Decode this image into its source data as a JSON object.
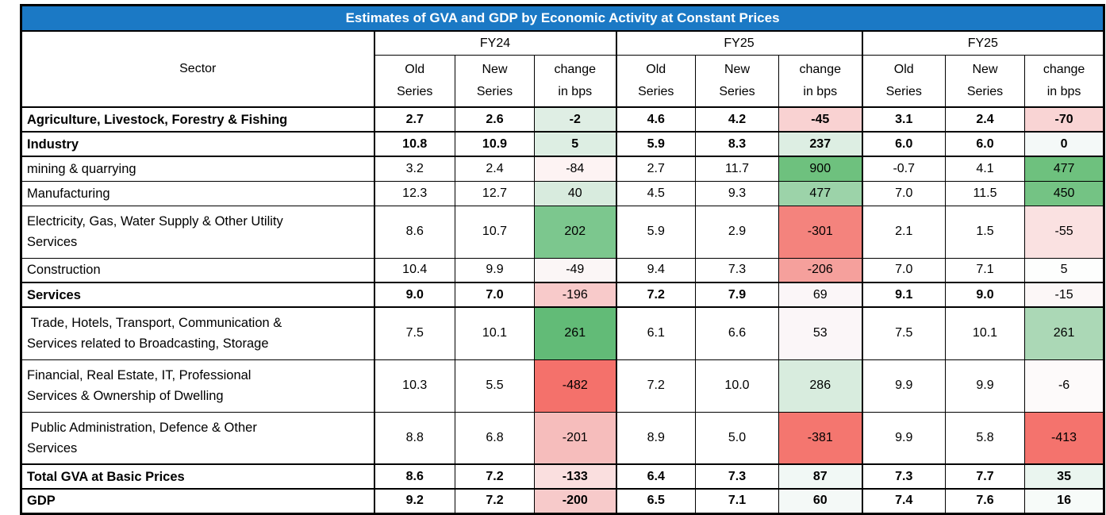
{
  "title_bar": {
    "text": "Estimates of GVA and GDP by Economic Activity at Constant Prices",
    "bg": "#1b79c5",
    "fg": "#ffffff"
  },
  "chart_data": {
    "type": "table",
    "title": "Estimates of GVA and GDP by Economic Activity at Constant Prices",
    "sector_header": "Sector",
    "groups": [
      "FY24",
      "FY25",
      "FY25"
    ],
    "sub_columns": [
      {
        "l1": "Old",
        "l2": "Series"
      },
      {
        "l1": "New",
        "l2": "Series"
      },
      {
        "l1": "change",
        "l2": "in bps"
      }
    ],
    "legend_note_colors": {
      "positive_change": "#6ec17e",
      "negative_change": "#f4716b",
      "neutral": "#ffffff",
      "border": "#000000"
    },
    "rows": [
      {
        "sector": "Agriculture, Livestock, Forestry & Fishing",
        "bold": true,
        "change_bold": true,
        "cells": [
          {
            "v": "2.7"
          },
          {
            "v": "2.6"
          },
          {
            "v": "-2",
            "bg": "#dfeee4"
          },
          {
            "v": "4.6"
          },
          {
            "v": "4.2"
          },
          {
            "v": "-45",
            "bg": "#f9d2d2"
          },
          {
            "v": "3.1"
          },
          {
            "v": "2.4"
          },
          {
            "v": "-70",
            "bg": "#f9d4d4"
          }
        ]
      },
      {
        "sector": "Industry",
        "bold": true,
        "change_bold": true,
        "cells": [
          {
            "v": "10.8"
          },
          {
            "v": "10.9"
          },
          {
            "v": "5",
            "bg": "#ddeee3"
          },
          {
            "v": "5.9"
          },
          {
            "v": "8.3"
          },
          {
            "v": "237",
            "bg": "#ddeee3"
          },
          {
            "v": "6.0"
          },
          {
            "v": "6.0"
          },
          {
            "v": "0",
            "bg": "#f4f9f8"
          }
        ]
      },
      {
        "sector": "mining & quarrying",
        "bold": false,
        "change_bold": false,
        "cells": [
          {
            "v": "3.2"
          },
          {
            "v": "2.4"
          },
          {
            "v": "-84",
            "bg": "#fdf3f3"
          },
          {
            "v": "2.7"
          },
          {
            "v": "11.7"
          },
          {
            "v": "900",
            "bg": "#6ec17e"
          },
          {
            "v": "-0.7"
          },
          {
            "v": "4.1"
          },
          {
            "v": "477",
            "bg": "#6ec17e"
          }
        ]
      },
      {
        "sector": "Manufacturing",
        "bold": false,
        "change_bold": false,
        "cells": [
          {
            "v": "12.3"
          },
          {
            "v": "12.7"
          },
          {
            "v": "40",
            "bg": "#d8ebde"
          },
          {
            "v": "4.5"
          },
          {
            "v": "9.3"
          },
          {
            "v": "477",
            "bg": "#9cd3a9"
          },
          {
            "v": "7.0"
          },
          {
            "v": "11.5"
          },
          {
            "v": "450",
            "bg": "#74c384"
          }
        ]
      },
      {
        "sector": "Electricity, Gas, Water Supply & Other Utility\nServices",
        "bold": false,
        "change_bold": false,
        "cells": [
          {
            "v": "8.6"
          },
          {
            "v": "10.7"
          },
          {
            "v": "202",
            "bg": "#7cc78e"
          },
          {
            "v": "5.9"
          },
          {
            "v": "2.9"
          },
          {
            "v": "-301",
            "bg": "#f4837d"
          },
          {
            "v": "2.1"
          },
          {
            "v": "1.5"
          },
          {
            "v": "-55",
            "bg": "#fae1e1"
          }
        ]
      },
      {
        "sector": "Construction",
        "bold": false,
        "change_bold": false,
        "cells": [
          {
            "v": "10.4"
          },
          {
            "v": "9.9"
          },
          {
            "v": "-49",
            "bg": "#fbf6f6"
          },
          {
            "v": "9.4"
          },
          {
            "v": "7.3"
          },
          {
            "v": "-206",
            "bg": "#f5a09c"
          },
          {
            "v": "7.0"
          },
          {
            "v": "7.1"
          },
          {
            "v": "5",
            "bg": "#fdfefd"
          }
        ]
      },
      {
        "sector": "Services",
        "bold": true,
        "change_bold": false,
        "cells": [
          {
            "v": "9.0"
          },
          {
            "v": "7.0"
          },
          {
            "v": "-196",
            "bg": "#f8caca"
          },
          {
            "v": "7.2"
          },
          {
            "v": "7.9"
          },
          {
            "v": "69",
            "bg": "#fbf6f8"
          },
          {
            "v": "9.1"
          },
          {
            "v": "9.0"
          },
          {
            "v": "-15",
            "bg": "#fcf7f7"
          }
        ]
      },
      {
        "sector": " Trade, Hotels, Transport, Communication &\nServices related to Broadcasting, Storage",
        "bold": false,
        "change_bold": false,
        "cells": [
          {
            "v": "7.5"
          },
          {
            "v": "10.1"
          },
          {
            "v": "261",
            "bg": "#62bb77"
          },
          {
            "v": "6.1"
          },
          {
            "v": "6.6"
          },
          {
            "v": "53",
            "bg": "#fbf6f8"
          },
          {
            "v": "7.5"
          },
          {
            "v": "10.1"
          },
          {
            "v": "261",
            "bg": "#abd8b6"
          }
        ]
      },
      {
        "sector": "Financial, Real Estate, IT, Professional\nServices & Ownership of Dwelling",
        "bold": false,
        "change_bold": false,
        "cells": [
          {
            "v": "10.3"
          },
          {
            "v": "5.5"
          },
          {
            "v": "-482",
            "bg": "#f4716b"
          },
          {
            "v": "7.2"
          },
          {
            "v": "10.0"
          },
          {
            "v": "286",
            "bg": "#d8ecde"
          },
          {
            "v": "9.9"
          },
          {
            "v": "9.9"
          },
          {
            "v": "-6",
            "bg": "#fdfafa"
          }
        ]
      },
      {
        "sector": " Public Administration, Defence & Other\nServices",
        "bold": false,
        "change_bold": false,
        "cells": [
          {
            "v": "8.8"
          },
          {
            "v": "6.8"
          },
          {
            "v": "-201",
            "bg": "#f6bdbc"
          },
          {
            "v": "8.9"
          },
          {
            "v": "5.0"
          },
          {
            "v": "-381",
            "bg": "#f4766f"
          },
          {
            "v": "9.9"
          },
          {
            "v": "5.8"
          },
          {
            "v": "-413",
            "bg": "#f4736d"
          }
        ]
      },
      {
        "sector": "Total GVA at Basic Prices",
        "bold": true,
        "change_bold": true,
        "cells": [
          {
            "v": "8.6"
          },
          {
            "v": "7.2"
          },
          {
            "v": "-133",
            "bg": "#fadfdf"
          },
          {
            "v": "6.4"
          },
          {
            "v": "7.3"
          },
          {
            "v": "87",
            "bg": "#f1f8f5"
          },
          {
            "v": "7.3"
          },
          {
            "v": "7.7"
          },
          {
            "v": "35",
            "bg": "#eaf5ef"
          }
        ]
      },
      {
        "sector": "GDP",
        "bold": true,
        "change_bold": true,
        "cells": [
          {
            "v": "9.2"
          },
          {
            "v": "7.2"
          },
          {
            "v": "-200",
            "bg": "#f7caca"
          },
          {
            "v": "6.5"
          },
          {
            "v": "7.1"
          },
          {
            "v": "60",
            "bg": "#f4f9f7"
          },
          {
            "v": "7.4"
          },
          {
            "v": "7.6"
          },
          {
            "v": "16",
            "bg": "#f7fbf9"
          }
        ]
      }
    ]
  }
}
